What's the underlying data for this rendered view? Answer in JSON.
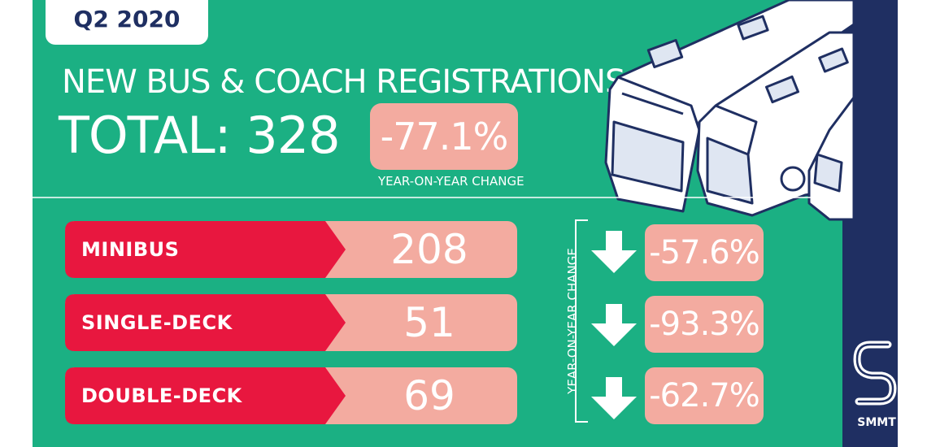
{
  "header": {
    "quarter": "Q2 2020",
    "headline": "NEW BUS & COACH REGISTRATIONS",
    "total_label": "TOTAL: 328",
    "total_change": "-77.1%",
    "change_caption": "YEAR-ON-YEAR CHANGE"
  },
  "rows": [
    {
      "label": "MINIBUS",
      "value": "208",
      "change": "-57.6%"
    },
    {
      "label": "SINGLE-DECK",
      "value": "51",
      "change": "-93.3%"
    },
    {
      "label": "DOUBLE-DECK",
      "value": "69",
      "change": "-62.7%"
    }
  ],
  "changes_caption": "YEAR-ON-YEAR CHANGE",
  "brand": {
    "name": "SMMT"
  },
  "colors": {
    "background": "#1bb083",
    "label_red": "#e8173f",
    "value_pink": "#f3aba0",
    "navy": "#1f2f62"
  }
}
